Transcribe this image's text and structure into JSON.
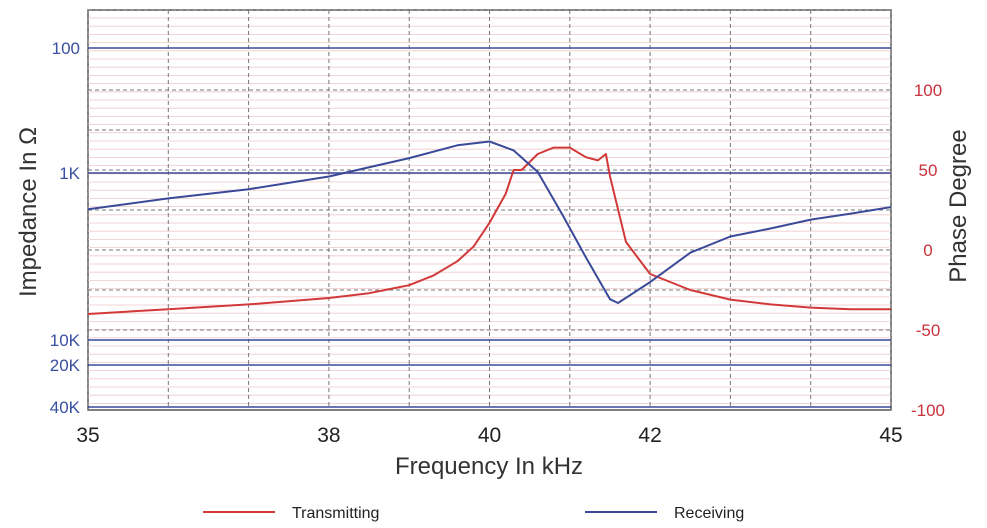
{
  "chart_data": {
    "type": "line",
    "xlabel": "Frequency In kHz",
    "ylabel_left": "Impedance In Ω",
    "ylabel_right": "Phase Degree",
    "x_ticks": [
      "35",
      "38",
      "40",
      "42",
      "45"
    ],
    "x_tick_values": [
      35,
      38,
      40,
      42,
      45
    ],
    "left_ticks": [
      "100",
      "1K",
      "10K",
      "20K",
      "40K"
    ],
    "left_tick_values": [
      100,
      1000,
      10000,
      20000,
      40000
    ],
    "left_scale": "log (inverted)",
    "right_ticks": [
      "100",
      "50",
      "0",
      "-50",
      "-100"
    ],
    "right_tick_values": [
      100,
      50,
      0,
      -50,
      -100
    ],
    "xlim": [
      35,
      45
    ],
    "phase_lim": [
      -100,
      130
    ],
    "grid": true,
    "legend_position": "bottom",
    "series": [
      {
        "name": "Transmitting",
        "color": "#d23a3a",
        "axis": "right",
        "unit": "degree",
        "x": [
          35,
          36,
          37,
          38,
          38.5,
          39,
          39.3,
          39.6,
          39.8,
          40,
          40.2,
          40.3,
          40.4,
          40.6,
          40.8,
          41,
          41.2,
          41.35,
          41.45,
          41.5,
          41.7,
          42,
          42.5,
          43,
          43.5,
          44,
          44.5,
          45
        ],
        "y": [
          -40,
          -37,
          -34,
          -30,
          -27,
          -22,
          -16,
          -7,
          2,
          17,
          35,
          50,
          50,
          60,
          64,
          64,
          58,
          56,
          60,
          46,
          5,
          -15,
          -25,
          -31,
          -34,
          -36,
          -37,
          -37
        ]
      },
      {
        "name": "Receiving",
        "color": "#3a4a99",
        "axis": "left",
        "unit": "Ω",
        "x": [
          35,
          36,
          37,
          38,
          39,
          39.6,
          40,
          40.3,
          40.6,
          40.9,
          41.2,
          41.5,
          41.6,
          42,
          42.5,
          43,
          43.5,
          44,
          44.5,
          45
        ],
        "y": [
          1650,
          1420,
          1250,
          1050,
          760,
          600,
          560,
          660,
          980,
          1750,
          3200,
          5700,
          6000,
          4500,
          3000,
          2400,
          2150,
          1900,
          1750,
          1600
        ]
      }
    ]
  }
}
